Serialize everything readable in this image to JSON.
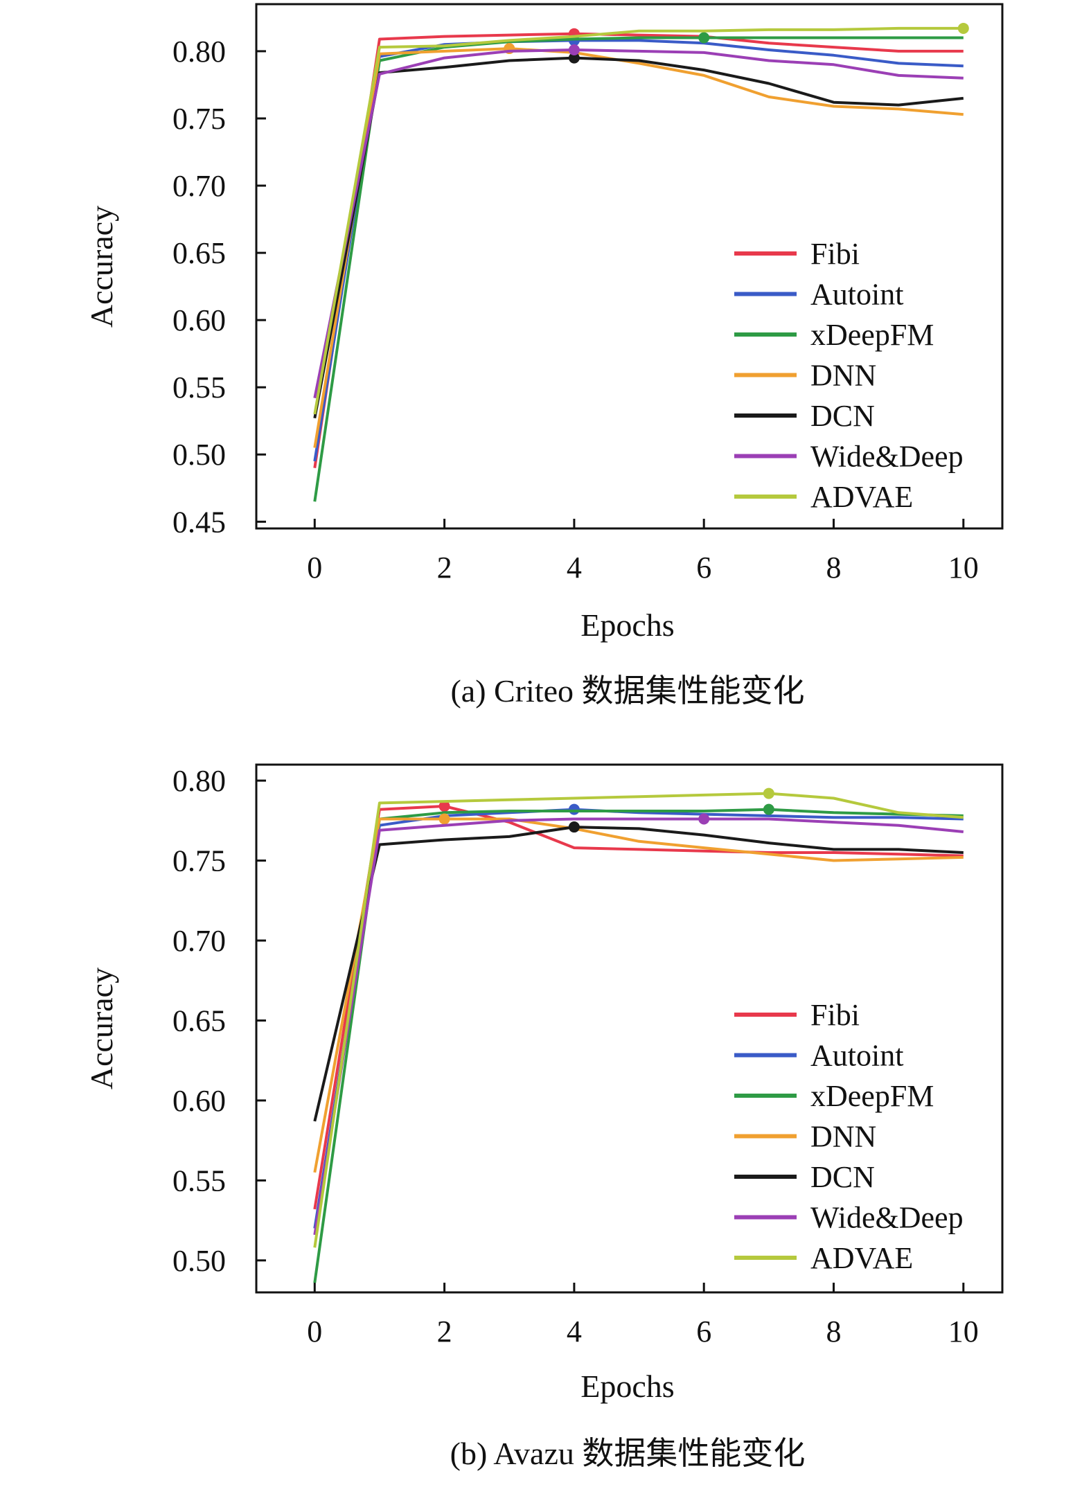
{
  "chart_data": [
    {
      "id": "criteo",
      "type": "line",
      "caption": "(a) Criteo 数据集性能变化",
      "xlabel": "Epochs",
      "ylabel": "Accuracy",
      "xlim": [
        -0.9,
        10.6
      ],
      "ylim": [
        0.445,
        0.835
      ],
      "xticks": [
        0,
        2,
        4,
        6,
        8,
        10
      ],
      "xtick_labels": [
        "0",
        "2",
        "4",
        "6",
        "8",
        "10"
      ],
      "yticks": [
        0.45,
        0.5,
        0.55,
        0.6,
        0.65,
        0.7,
        0.75,
        0.8
      ],
      "ytick_labels": [
        "0.45",
        "0.50",
        "0.55",
        "0.60",
        "0.65",
        "0.70",
        "0.75",
        "0.80"
      ],
      "legend_position": "lower-right",
      "series": [
        {
          "name": "Fibi",
          "color": "#e8394c",
          "x": [
            0,
            1,
            2,
            3,
            4,
            5,
            6,
            7,
            8,
            9,
            10
          ],
          "values": [
            0.49,
            0.809,
            0.811,
            0.812,
            0.813,
            0.812,
            0.811,
            0.806,
            0.803,
            0.8,
            0.8
          ],
          "marker": {
            "x": 4,
            "y": 0.813
          }
        },
        {
          "name": "Autoint",
          "color": "#3a5bc7",
          "x": [
            0,
            1,
            2,
            3,
            4,
            5,
            6,
            7,
            8,
            9,
            10
          ],
          "values": [
            0.495,
            0.796,
            0.805,
            0.807,
            0.808,
            0.808,
            0.806,
            0.801,
            0.797,
            0.791,
            0.789
          ],
          "marker": {
            "x": 4,
            "y": 0.808
          }
        },
        {
          "name": "xDeepFM",
          "color": "#2e9b45",
          "x": [
            0,
            1,
            2,
            3,
            4,
            5,
            6,
            7,
            8,
            9,
            10
          ],
          "values": [
            0.465,
            0.793,
            0.803,
            0.807,
            0.809,
            0.81,
            0.81,
            0.81,
            0.81,
            0.81,
            0.81
          ],
          "marker": {
            "x": 6,
            "y": 0.81
          }
        },
        {
          "name": "DNN",
          "color": "#f0a030",
          "x": [
            0,
            1,
            2,
            3,
            4,
            5,
            6,
            7,
            8,
            9,
            10
          ],
          "values": [
            0.505,
            0.798,
            0.8,
            0.802,
            0.799,
            0.791,
            0.782,
            0.766,
            0.759,
            0.757,
            0.753
          ],
          "marker": {
            "x": 3,
            "y": 0.802
          }
        },
        {
          "name": "DCN",
          "color": "#1a1a1a",
          "x": [
            0,
            1,
            2,
            3,
            4,
            5,
            6,
            7,
            8,
            9,
            10
          ],
          "values": [
            0.527,
            0.784,
            0.788,
            0.793,
            0.795,
            0.793,
            0.786,
            0.776,
            0.762,
            0.76,
            0.765
          ],
          "marker": {
            "x": 4,
            "y": 0.795
          }
        },
        {
          "name": "Wide&Deep",
          "color": "#9b3fb5",
          "x": [
            0,
            1,
            2,
            3,
            4,
            5,
            6,
            7,
            8,
            9,
            10
          ],
          "values": [
            0.542,
            0.783,
            0.795,
            0.8,
            0.801,
            0.8,
            0.799,
            0.793,
            0.79,
            0.782,
            0.78
          ],
          "marker": {
            "x": 4,
            "y": 0.801
          }
        },
        {
          "name": "ADVAE",
          "color": "#b5c93d",
          "x": [
            0,
            1,
            2,
            3,
            4,
            5,
            6,
            7,
            8,
            9,
            10
          ],
          "values": [
            0.53,
            0.803,
            0.804,
            0.808,
            0.811,
            0.815,
            0.815,
            0.816,
            0.816,
            0.817,
            0.817
          ],
          "marker": {
            "x": 10,
            "y": 0.817
          }
        }
      ]
    },
    {
      "id": "avazu",
      "type": "line",
      "caption": "(b) Avazu 数据集性能变化",
      "xlabel": "Epochs",
      "ylabel": "Accuracy",
      "xlim": [
        -0.9,
        10.6
      ],
      "ylim": [
        0.48,
        0.81
      ],
      "xticks": [
        0,
        2,
        4,
        6,
        8,
        10
      ],
      "xtick_labels": [
        "0",
        "2",
        "4",
        "6",
        "8",
        "10"
      ],
      "yticks": [
        0.5,
        0.55,
        0.6,
        0.65,
        0.7,
        0.75,
        0.8
      ],
      "ytick_labels": [
        "0.50",
        "0.55",
        "0.60",
        "0.65",
        "0.70",
        "0.75",
        "0.80"
      ],
      "legend_position": "lower-right",
      "series": [
        {
          "name": "Fibi",
          "color": "#e8394c",
          "x": [
            0,
            1,
            2,
            3,
            4,
            5,
            6,
            7,
            8,
            9,
            10
          ],
          "values": [
            0.532,
            0.782,
            0.784,
            0.774,
            0.758,
            0.757,
            0.756,
            0.755,
            0.755,
            0.754,
            0.753
          ],
          "marker": {
            "x": 2,
            "y": 0.784
          }
        },
        {
          "name": "Autoint",
          "color": "#3a5bc7",
          "x": [
            0,
            1,
            2,
            3,
            4,
            5,
            6,
            7,
            8,
            9,
            10
          ],
          "values": [
            0.52,
            0.772,
            0.778,
            0.78,
            0.782,
            0.78,
            0.779,
            0.778,
            0.777,
            0.777,
            0.776
          ],
          "marker": {
            "x": 4,
            "y": 0.782
          }
        },
        {
          "name": "xDeepFM",
          "color": "#2e9b45",
          "x": [
            0,
            1,
            2,
            3,
            4,
            5,
            6,
            7,
            8,
            9,
            10
          ],
          "values": [
            0.486,
            0.776,
            0.78,
            0.781,
            0.781,
            0.781,
            0.781,
            0.782,
            0.78,
            0.779,
            0.778
          ],
          "marker": {
            "x": 7,
            "y": 0.782
          }
        },
        {
          "name": "DNN",
          "color": "#f0a030",
          "x": [
            0,
            1,
            2,
            3,
            4,
            5,
            6,
            7,
            8,
            9,
            10
          ],
          "values": [
            0.555,
            0.776,
            0.776,
            0.776,
            0.77,
            0.762,
            0.758,
            0.754,
            0.75,
            0.751,
            0.752
          ],
          "marker": {
            "x": 2,
            "y": 0.776
          }
        },
        {
          "name": "DCN",
          "color": "#1a1a1a",
          "x": [
            0,
            1,
            2,
            3,
            4,
            5,
            6,
            7,
            8,
            9,
            10
          ],
          "values": [
            0.587,
            0.76,
            0.763,
            0.765,
            0.771,
            0.77,
            0.766,
            0.761,
            0.757,
            0.757,
            0.755
          ],
          "marker": {
            "x": 4,
            "y": 0.771
          }
        },
        {
          "name": "Wide&Deep",
          "color": "#9b3fb5",
          "x": [
            0,
            1,
            2,
            3,
            4,
            5,
            6,
            7,
            8,
            9,
            10
          ],
          "values": [
            0.516,
            0.769,
            0.772,
            0.775,
            0.776,
            0.776,
            0.776,
            0.776,
            0.774,
            0.772,
            0.768
          ],
          "marker": {
            "x": 6,
            "y": 0.776
          }
        },
        {
          "name": "ADVAE",
          "color": "#b5c93d",
          "x": [
            0,
            1,
            2,
            3,
            4,
            5,
            6,
            7,
            8,
            9,
            10
          ],
          "values": [
            0.508,
            0.786,
            0.787,
            0.788,
            0.789,
            0.79,
            0.791,
            0.792,
            0.789,
            0.78,
            0.777
          ],
          "marker": {
            "x": 7,
            "y": 0.792
          }
        }
      ]
    }
  ]
}
